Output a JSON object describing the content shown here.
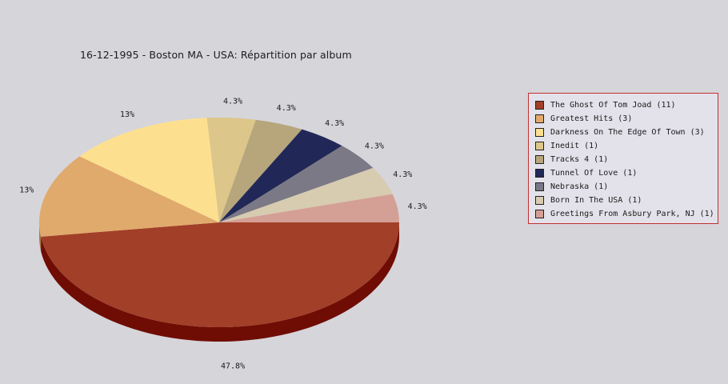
{
  "chart_data": {
    "type": "pie",
    "title": "16-12-1995 - Boston MA - USA:  Répartition par album",
    "legend_position": "right",
    "slices": [
      {
        "label": "The Ghost Of Tom Joad (11)",
        "value": 11,
        "percent_label": "47.8%",
        "color": "#a23f28",
        "side_color": "#6f0d05"
      },
      {
        "label": "Greatest Hits (3)",
        "value": 3,
        "percent_label": "13%",
        "color": "#e0aa6c",
        "side_color": "#a5784a"
      },
      {
        "label": "Darkness On The Edge Of Town (3)",
        "value": 3,
        "percent_label": "13%",
        "color": "#fde08f",
        "side_color": "#b9a46a"
      },
      {
        "label": "Inedit (1)",
        "value": 1,
        "percent_label": "4.3%",
        "color": "#dcc68a",
        "side_color": "#a39265"
      },
      {
        "label": "Tracks 4 (1)",
        "value": 1,
        "percent_label": "4.3%",
        "color": "#b7a67c",
        "side_color": "#877a5b"
      },
      {
        "label": "Tunnel Of Love (1)",
        "value": 1,
        "percent_label": "4.3%",
        "color": "#212857",
        "side_color": "#141838"
      },
      {
        "label": "Nebraska (1)",
        "value": 1,
        "percent_label": "4.3%",
        "color": "#7b7986",
        "side_color": "#56545e"
      },
      {
        "label": "Born In The USA (1)",
        "value": 1,
        "percent_label": "4.3%",
        "color": "#d7cbb0",
        "side_color": "#9f967f"
      },
      {
        "label": "Greetings From Asbury Park, NJ (1)",
        "value": 1,
        "percent_label": "4.3%",
        "color": "#d49f95",
        "side_color": "#9b736b"
      }
    ]
  }
}
